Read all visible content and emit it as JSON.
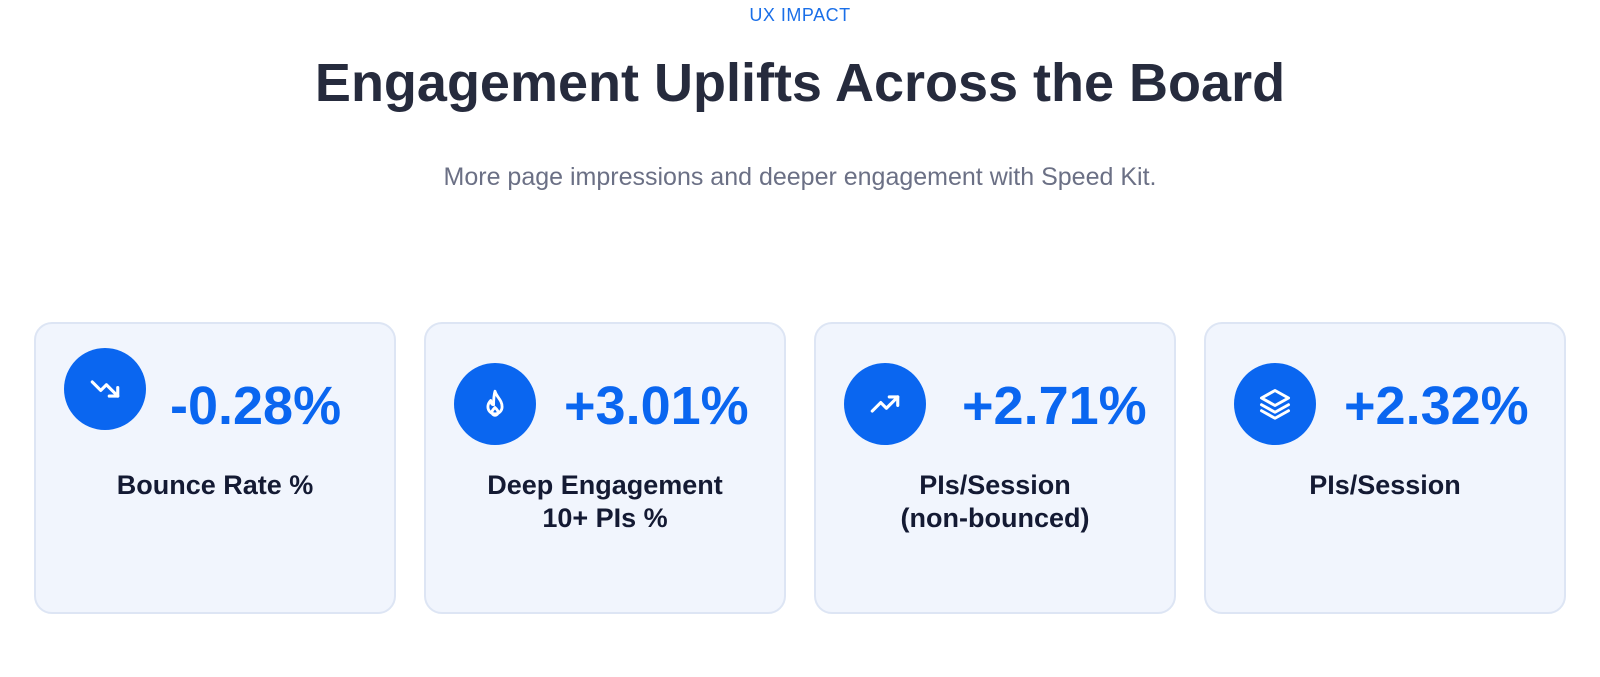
{
  "header": {
    "eyebrow": "UX IMPACT",
    "title": "Engagement Uplifts Across the Board",
    "subtitle": "More page impressions and deeper engagement with Speed Kit."
  },
  "colors": {
    "accent": "#0a66f0",
    "title": "#262b3d",
    "subtitle": "#6b7085",
    "card_bg": "#f1f5fd",
    "card_border": "#dde5f4"
  },
  "metrics": [
    {
      "icon": "trending-down-icon",
      "value": "-0.28%",
      "label_lines": [
        "Bounce Rate %"
      ]
    },
    {
      "icon": "flame-icon",
      "value": "+3.01%",
      "label_lines": [
        "Deep Engagement",
        "10+ PIs %"
      ]
    },
    {
      "icon": "trending-up-icon",
      "value": "+2.71%",
      "label_lines": [
        "PIs/Session",
        "(non-bounced)"
      ]
    },
    {
      "icon": "layers-icon",
      "value": "+2.32%",
      "label_lines": [
        "PIs/Session"
      ]
    }
  ]
}
